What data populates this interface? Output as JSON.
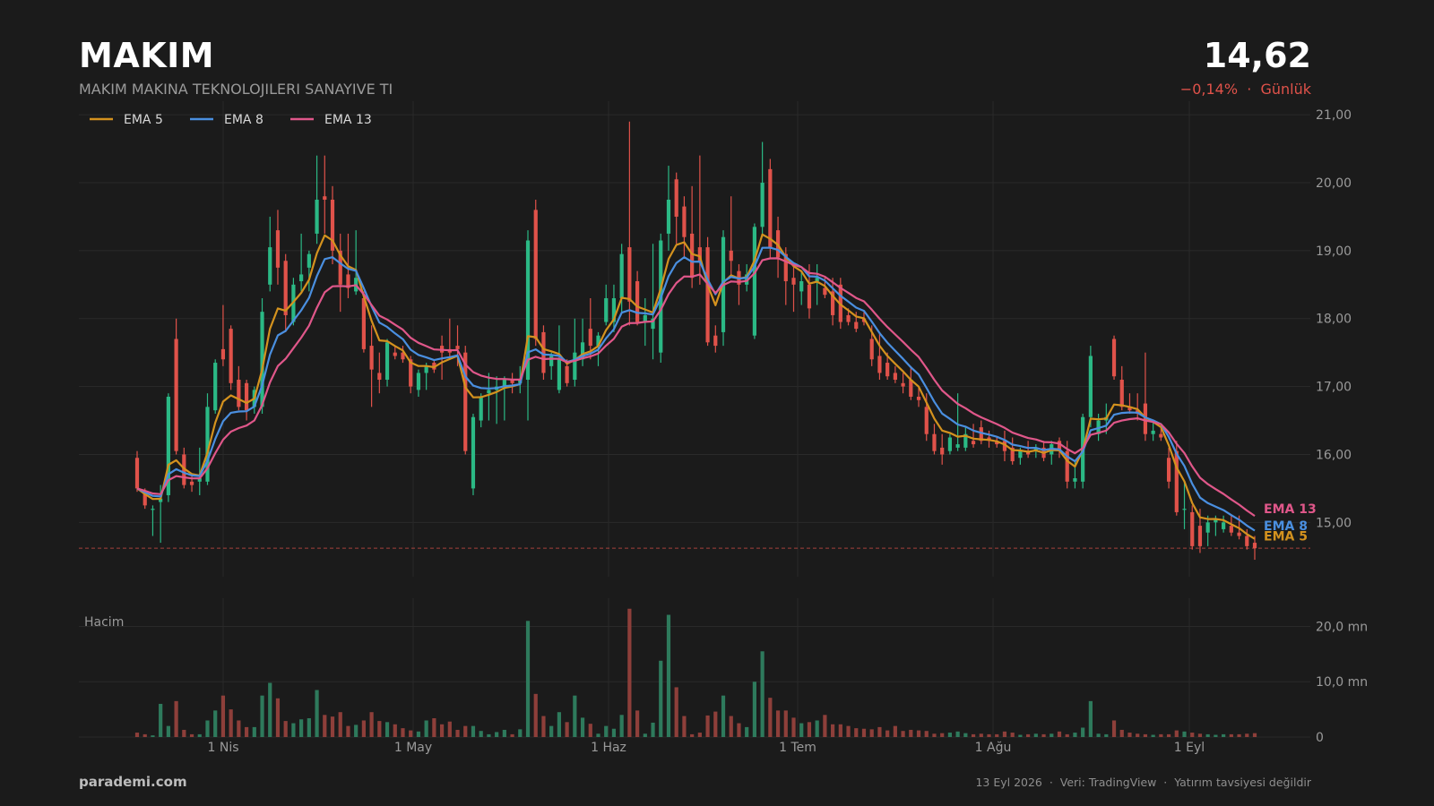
{
  "header": {
    "ticker": "MAKIM",
    "company": "MAKIM MAKINA TEKNOLOJILERI SANAYIVE TI",
    "price": "14,62",
    "change": "−0,14%",
    "period": "Günlük"
  },
  "footer": {
    "brand": "parademi.com",
    "date": "13 Eyl 2026",
    "source": "Veri: TradingView",
    "disclaimer": "Yatırım tavsiyesi değildir"
  },
  "colors": {
    "up": "#2bb985",
    "down": "#e0524a",
    "ema5": "#d4921e",
    "ema8": "#4a8fe0",
    "ema13": "#e0578a"
  },
  "chart_data": {
    "type": "candlestick",
    "x_ticks": [
      "1 Nis",
      "1 May",
      "1 Haz",
      "1 Tem",
      "1 Ağu",
      "1 Eyl"
    ],
    "y_ticks": [
      "21,00",
      "20,00",
      "19,00",
      "18,00",
      "17,00",
      "16,00",
      "15,00"
    ],
    "ylim": [
      14.2,
      21.2
    ],
    "volume_ticks": [
      "20,0 mn",
      "10,0 mn",
      "0"
    ],
    "volume_label": "Hacim",
    "last_price": 14.62,
    "legend": [
      "EMA 5",
      "EMA 8",
      "EMA 13"
    ],
    "end_labels": [
      "EMA 13",
      "EMA 8",
      "EMA 5"
    ],
    "ohlc": [
      [
        15.95,
        16.05,
        15.45,
        15.5,
        0.8
      ],
      [
        15.45,
        15.5,
        15.2,
        15.25,
        0.5
      ],
      [
        15.2,
        15.25,
        14.8,
        15.2,
        0.3
      ],
      [
        15.3,
        15.55,
        14.7,
        15.35,
        6.0
      ],
      [
        15.4,
        16.9,
        15.3,
        16.85,
        2.0
      ],
      [
        17.7,
        18.0,
        16.0,
        16.05,
        6.5
      ],
      [
        16.0,
        16.1,
        15.5,
        15.55,
        1.3
      ],
      [
        15.6,
        15.7,
        15.45,
        15.55,
        0.5
      ],
      [
        15.6,
        16.1,
        15.4,
        15.65,
        0.5
      ],
      [
        15.6,
        16.9,
        15.55,
        16.7,
        3.0
      ],
      [
        16.65,
        17.4,
        16.6,
        17.35,
        4.8
      ],
      [
        17.55,
        18.2,
        17.3,
        17.4,
        7.5
      ],
      [
        17.85,
        17.9,
        16.95,
        17.05,
        5.0
      ],
      [
        17.1,
        17.3,
        16.65,
        16.7,
        3.0
      ],
      [
        17.05,
        17.1,
        16.5,
        16.65,
        1.8
      ],
      [
        16.7,
        17.0,
        16.6,
        16.95,
        1.8
      ],
      [
        16.7,
        18.3,
        16.6,
        18.1,
        7.5
      ],
      [
        18.5,
        19.5,
        18.4,
        19.05,
        9.8
      ],
      [
        19.3,
        19.6,
        18.5,
        18.75,
        7.0
      ],
      [
        18.85,
        18.95,
        17.8,
        18.05,
        2.9
      ],
      [
        17.95,
        18.6,
        17.9,
        18.5,
        2.5
      ],
      [
        18.55,
        19.25,
        18.4,
        18.65,
        3.2
      ],
      [
        18.75,
        19.0,
        18.4,
        18.95,
        3.4
      ],
      [
        19.25,
        20.4,
        19.1,
        19.75,
        8.5
      ],
      [
        19.8,
        20.4,
        19.25,
        19.75,
        4.0
      ],
      [
        19.75,
        19.95,
        18.8,
        19.0,
        3.7
      ],
      [
        19.0,
        19.25,
        18.1,
        18.5,
        4.5
      ],
      [
        18.65,
        19.25,
        18.3,
        18.45,
        2.0
      ],
      [
        18.4,
        19.3,
        18.35,
        18.6,
        2.2
      ],
      [
        18.3,
        18.4,
        17.5,
        17.55,
        3.0
      ],
      [
        17.6,
        17.9,
        16.7,
        17.25,
        4.5
      ],
      [
        17.2,
        17.5,
        16.9,
        17.1,
        2.9
      ],
      [
        17.1,
        17.7,
        17.0,
        17.65,
        2.7
      ],
      [
        17.5,
        17.6,
        17.4,
        17.45,
        2.3
      ],
      [
        17.5,
        17.6,
        17.35,
        17.4,
        1.6
      ],
      [
        17.4,
        17.45,
        16.9,
        17.0,
        1.2
      ],
      [
        16.95,
        17.25,
        16.85,
        17.2,
        1.0
      ],
      [
        17.2,
        17.35,
        16.95,
        17.3,
        3.0
      ],
      [
        17.35,
        17.4,
        17.2,
        17.25,
        3.4
      ],
      [
        17.6,
        17.75,
        17.1,
        17.5,
        2.3
      ],
      [
        17.55,
        18.0,
        17.4,
        17.5,
        2.8
      ],
      [
        17.6,
        17.9,
        17.3,
        17.55,
        1.3
      ],
      [
        17.5,
        17.6,
        16.0,
        16.05,
        2.0
      ],
      [
        15.5,
        16.6,
        15.4,
        16.55,
        2.0
      ],
      [
        16.5,
        16.9,
        16.4,
        16.85,
        1.1
      ],
      [
        16.9,
        17.2,
        16.5,
        16.95,
        0.5
      ],
      [
        16.95,
        17.15,
        16.45,
        17.0,
        0.9
      ],
      [
        17.0,
        17.15,
        16.5,
        17.1,
        1.3
      ],
      [
        17.1,
        17.2,
        16.9,
        17.05,
        0.5
      ],
      [
        17.05,
        17.3,
        16.9,
        17.1,
        1.4
      ],
      [
        17.1,
        19.3,
        16.5,
        19.15,
        21.0
      ],
      [
        19.6,
        19.75,
        17.6,
        17.7,
        7.8
      ],
      [
        17.8,
        17.9,
        17.1,
        17.2,
        3.8
      ],
      [
        17.3,
        17.5,
        17.1,
        17.45,
        2.0
      ],
      [
        16.95,
        17.9,
        16.9,
        17.4,
        4.5
      ],
      [
        17.3,
        17.4,
        17.0,
        17.05,
        2.7
      ],
      [
        17.1,
        18.0,
        17.0,
        17.5,
        7.5
      ],
      [
        17.4,
        18.0,
        17.3,
        17.65,
        3.5
      ],
      [
        17.85,
        18.3,
        17.4,
        17.6,
        2.4
      ],
      [
        17.6,
        17.8,
        17.3,
        17.75,
        0.6
      ],
      [
        17.95,
        18.5,
        17.9,
        18.3,
        2.0
      ],
      [
        17.95,
        18.5,
        17.8,
        18.3,
        1.5
      ],
      [
        18.3,
        19.1,
        18.1,
        18.95,
        4.0
      ],
      [
        19.05,
        20.9,
        17.9,
        18.25,
        23.2
      ],
      [
        18.55,
        18.7,
        17.9,
        17.95,
        4.8
      ],
      [
        17.95,
        18.3,
        17.6,
        18.05,
        0.6
      ],
      [
        17.85,
        19.1,
        17.4,
        18.0,
        2.6
      ],
      [
        17.5,
        19.25,
        17.35,
        19.15,
        13.8
      ],
      [
        19.25,
        20.25,
        19.0,
        19.75,
        22.1
      ],
      [
        20.05,
        20.15,
        19.1,
        19.5,
        9.0
      ],
      [
        19.65,
        19.8,
        18.9,
        19.2,
        3.8
      ],
      [
        19.25,
        19.95,
        18.45,
        18.6,
        0.5
      ],
      [
        19.05,
        20.4,
        18.5,
        18.85,
        0.8
      ],
      [
        19.05,
        19.2,
        17.6,
        17.65,
        3.9
      ],
      [
        17.75,
        17.9,
        17.5,
        17.6,
        4.6
      ],
      [
        17.8,
        19.3,
        17.6,
        19.2,
        7.5
      ],
      [
        19.0,
        19.8,
        18.6,
        18.85,
        3.8
      ],
      [
        18.7,
        18.8,
        18.2,
        18.5,
        2.5
      ],
      [
        18.5,
        18.8,
        18.4,
        18.65,
        1.8
      ],
      [
        17.75,
        19.4,
        17.7,
        19.35,
        10.0
      ],
      [
        19.35,
        20.6,
        19.2,
        20.0,
        15.5
      ],
      [
        20.2,
        20.35,
        18.9,
        19.05,
        7.1
      ],
      [
        19.3,
        19.5,
        18.6,
        18.9,
        4.8
      ],
      [
        18.95,
        19.05,
        18.2,
        18.55,
        4.8
      ],
      [
        18.6,
        18.8,
        18.1,
        18.5,
        3.5
      ],
      [
        18.4,
        18.7,
        18.2,
        18.55,
        2.5
      ],
      [
        18.5,
        18.8,
        18.0,
        18.15,
        2.7
      ],
      [
        18.55,
        18.8,
        18.2,
        18.6,
        3.0
      ],
      [
        18.45,
        18.6,
        18.3,
        18.35,
        4.0
      ],
      [
        18.4,
        18.6,
        17.9,
        18.05,
        2.3
      ],
      [
        18.5,
        18.6,
        17.85,
        17.95,
        2.3
      ],
      [
        18.05,
        18.15,
        17.9,
        17.95,
        2.0
      ],
      [
        17.95,
        18.1,
        17.8,
        17.85,
        1.6
      ],
      [
        18.0,
        18.1,
        17.9,
        17.95,
        1.5
      ],
      [
        17.7,
        17.9,
        17.3,
        17.4,
        1.4
      ],
      [
        17.45,
        17.8,
        17.1,
        17.2,
        1.8
      ],
      [
        17.35,
        17.5,
        17.1,
        17.15,
        1.2
      ],
      [
        17.2,
        17.3,
        17.05,
        17.1,
        2.0
      ],
      [
        17.05,
        17.2,
        16.9,
        17.0,
        1.1
      ],
      [
        17.1,
        17.3,
        16.8,
        16.85,
        1.3
      ],
      [
        16.85,
        17.0,
        16.7,
        16.8,
        1.2
      ],
      [
        16.7,
        16.9,
        16.2,
        16.3,
        1.1
      ],
      [
        16.3,
        16.45,
        16.0,
        16.05,
        0.6
      ],
      [
        16.1,
        16.3,
        15.85,
        16.0,
        0.7
      ],
      [
        16.05,
        16.3,
        16.0,
        16.25,
        0.8
      ],
      [
        16.1,
        16.9,
        16.05,
        16.15,
        1.0
      ],
      [
        16.1,
        16.4,
        16.05,
        16.3,
        0.7
      ],
      [
        16.2,
        16.45,
        16.1,
        16.15,
        0.5
      ],
      [
        16.4,
        16.5,
        16.15,
        16.2,
        0.6
      ],
      [
        16.25,
        16.35,
        16.1,
        16.2,
        0.5
      ],
      [
        16.2,
        16.25,
        16.1,
        16.15,
        0.5
      ],
      [
        16.2,
        16.35,
        15.9,
        16.05,
        1.0
      ],
      [
        16.1,
        16.25,
        15.85,
        15.9,
        0.8
      ],
      [
        15.95,
        16.1,
        15.85,
        16.05,
        0.4
      ],
      [
        16.05,
        16.2,
        15.95,
        16.0,
        0.5
      ],
      [
        16.05,
        16.15,
        15.95,
        16.1,
        0.6
      ],
      [
        16.1,
        16.2,
        15.9,
        15.95,
        0.5
      ],
      [
        16.0,
        16.2,
        15.85,
        16.15,
        0.6
      ],
      [
        16.2,
        16.25,
        15.95,
        16.05,
        1.0
      ],
      [
        16.05,
        16.2,
        15.5,
        15.6,
        0.5
      ],
      [
        15.6,
        15.9,
        15.5,
        15.65,
        0.8
      ],
      [
        15.6,
        16.6,
        15.5,
        16.55,
        1.7
      ],
      [
        16.55,
        17.6,
        16.4,
        17.45,
        6.5
      ],
      [
        16.3,
        16.6,
        16.2,
        16.5,
        0.6
      ],
      [
        16.5,
        16.75,
        16.3,
        16.55,
        0.5
      ],
      [
        17.7,
        17.75,
        17.1,
        17.15,
        3.0
      ],
      [
        17.1,
        17.3,
        16.65,
        16.7,
        1.3
      ],
      [
        16.7,
        16.9,
        16.6,
        16.65,
        0.8
      ],
      [
        16.65,
        16.9,
        16.5,
        16.6,
        0.6
      ],
      [
        16.75,
        17.5,
        16.2,
        16.3,
        0.5
      ],
      [
        16.3,
        16.5,
        16.2,
        16.35,
        0.4
      ],
      [
        16.3,
        16.4,
        16.2,
        16.25,
        0.5
      ],
      [
        15.95,
        16.1,
        15.5,
        15.6,
        0.5
      ],
      [
        16.05,
        16.2,
        15.1,
        15.15,
        1.2
      ],
      [
        15.2,
        15.6,
        14.9,
        15.2,
        1.0
      ],
      [
        15.15,
        15.25,
        14.6,
        14.65,
        0.8
      ],
      [
        14.95,
        15.2,
        14.55,
        14.65,
        0.6
      ],
      [
        14.85,
        15.1,
        14.65,
        15.0,
        0.5
      ],
      [
        15.0,
        15.1,
        14.8,
        15.05,
        0.4
      ],
      [
        14.9,
        15.1,
        14.85,
        15.0,
        0.5
      ],
      [
        14.95,
        15.1,
        14.8,
        14.85,
        0.5
      ],
      [
        14.85,
        15.1,
        14.75,
        14.8,
        0.5
      ],
      [
        14.8,
        14.9,
        14.6,
        14.65,
        0.6
      ],
      [
        14.7,
        14.8,
        14.45,
        14.62,
        0.7
      ]
    ]
  }
}
